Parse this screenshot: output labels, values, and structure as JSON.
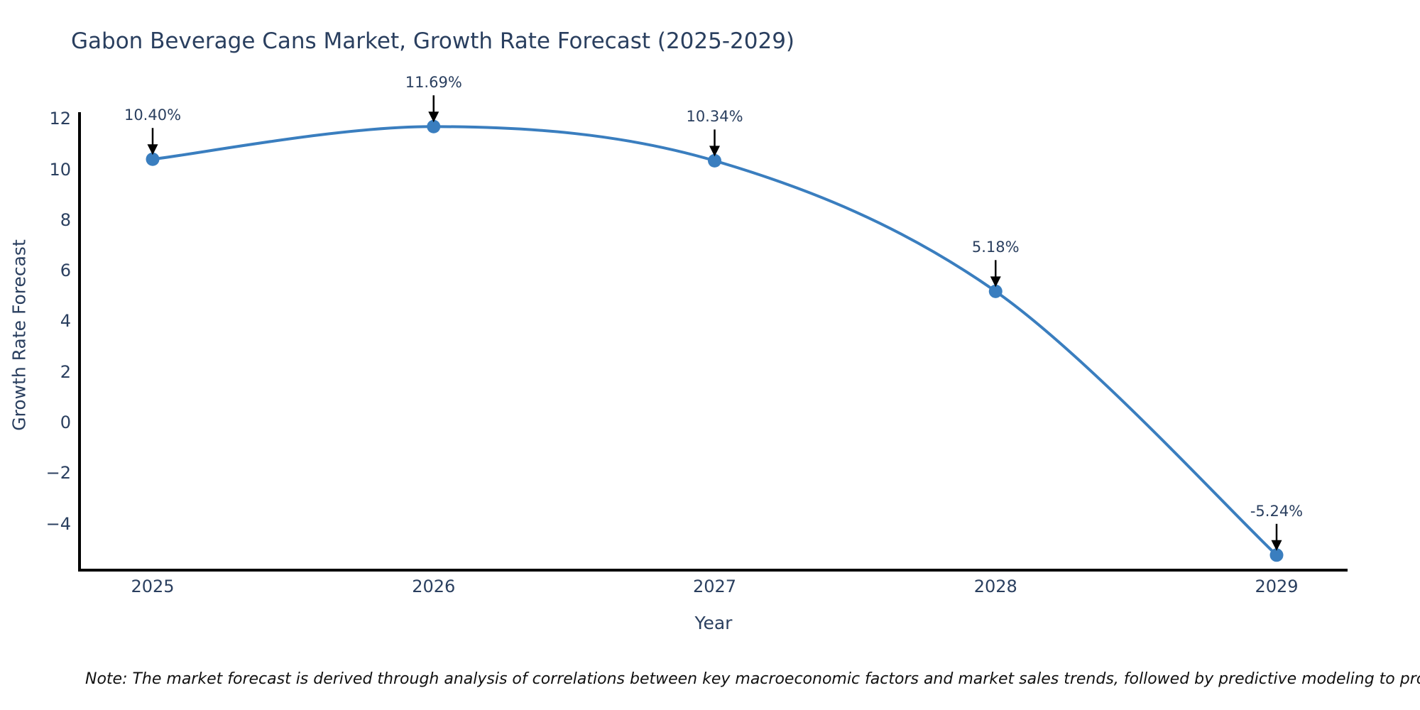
{
  "note": "Note: The market forecast is derived through analysis of correlations between key macroeconomic factors and market sales trends, followed by predictive modeling to project future sales",
  "chart_data": {
    "type": "line",
    "title": "Gabon Beverage Cans Market, Growth Rate Forecast (2025-2029)",
    "xlabel": "Year",
    "ylabel": "Growth Rate Forecast",
    "categories": [
      "2025",
      "2026",
      "2027",
      "2028",
      "2029"
    ],
    "series": [
      {
        "name": "Growth Rate Forecast",
        "values": [
          10.4,
          11.69,
          10.34,
          5.18,
          -5.24
        ],
        "point_labels": [
          "10.40%",
          "11.69%",
          "10.34%",
          "5.18%",
          "-5.24%"
        ]
      }
    ],
    "y_ticks": [
      12,
      10,
      8,
      6,
      4,
      2,
      0,
      -2,
      -4
    ],
    "ylim": [
      -5.7,
      12.2
    ],
    "line_shape": "spline",
    "grid": false,
    "legend": false,
    "colors": {
      "line": "#3a7ebf",
      "marker": "#3a7ebf",
      "axis": "#000000",
      "text": "#2a3f5f",
      "arrow": "#000000",
      "note": "#111111"
    }
  }
}
